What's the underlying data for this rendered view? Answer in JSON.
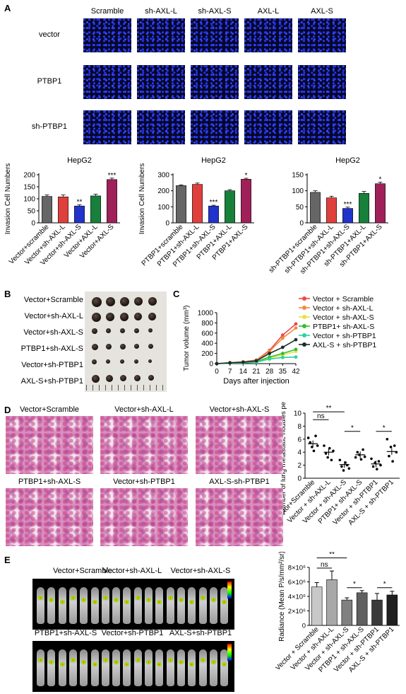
{
  "panels": {
    "a": "A",
    "b": "B",
    "c": "C",
    "d": "D",
    "e": "E"
  },
  "panelA": {
    "columns": [
      "Scramble",
      "sh-AXL-L",
      "sh-AXL-S",
      "AXL-L",
      "AXL-S"
    ],
    "rows": [
      "vector",
      "PTBP1",
      "sh-PTBP1"
    ]
  },
  "chart_data": [
    {
      "type": "bar",
      "title": "HepG2",
      "ylabel": "Invasion Cell Numbers",
      "ylim": [
        0,
        200
      ],
      "yticks": [
        0,
        50,
        100,
        150,
        200
      ],
      "categories": [
        "Vector+scramble",
        "Vector+sh-AXL-L",
        "Vector+sh-AXL-S",
        "Vector+AXL-L",
        "Vector+AXL-S"
      ],
      "values": [
        110,
        108,
        70,
        112,
        180
      ],
      "errors": [
        6,
        8,
        5,
        7,
        6
      ],
      "colors": [
        "#666666",
        "#e0403c",
        "#2233cc",
        "#17803a",
        "#a0205a"
      ],
      "sig": [
        "",
        "",
        "**",
        "",
        "***"
      ]
    },
    {
      "type": "bar",
      "title": "HepG2",
      "ylabel": "Invasion Cell Numbers",
      "ylim": [
        0,
        300
      ],
      "yticks": [
        0,
        100,
        200,
        300
      ],
      "categories": [
        "PTBP1+scramble",
        "PTBP1+sh-AXL-L",
        "PTBP1+sh-AXL-S",
        "PTBP1+AXL-L",
        "PTBP1+AXL-S"
      ],
      "values": [
        232,
        240,
        105,
        200,
        272
      ],
      "errors": [
        5,
        8,
        5,
        7,
        6
      ],
      "colors": [
        "#666666",
        "#e0403c",
        "#2233cc",
        "#17803a",
        "#a0205a"
      ],
      "sig": [
        "",
        "",
        "***",
        "",
        "*"
      ]
    },
    {
      "type": "bar",
      "title": "HepG2",
      "ylabel": "",
      "ylim": [
        0,
        150
      ],
      "yticks": [
        0,
        50,
        100,
        150
      ],
      "categories": [
        "sh-PTBP1+scramble",
        "sh-PTBP1+sh-AXL-L",
        "sh-PTBP1+sh-AXL-S",
        "sh-PTBP1+AXL-L",
        "sh-PTBP1+AXL-S"
      ],
      "values": [
        95,
        78,
        45,
        92,
        122
      ],
      "errors": [
        5,
        5,
        4,
        6,
        5
      ],
      "colors": [
        "#666666",
        "#e0403c",
        "#2233cc",
        "#17803a",
        "#a0205a"
      ],
      "sig": [
        "",
        "",
        "***",
        "",
        "*"
      ]
    },
    {
      "type": "line",
      "ylabel": "Tumor volume (mm³)",
      "xlabel": "Days after injection",
      "ylim": [
        0,
        1000
      ],
      "yticks": [
        0,
        200,
        400,
        600,
        800,
        1000
      ],
      "x": [
        0,
        7,
        14,
        21,
        28,
        35,
        42
      ],
      "series": [
        {
          "name": "Vector + Scramble",
          "color": "#f0464a",
          "marker": "circle",
          "values": [
            0,
            20,
            35,
            70,
            260,
            560,
            780
          ]
        },
        {
          "name": "Vector + sh-AXL-L",
          "color": "#f08a3c",
          "marker": "square",
          "values": [
            0,
            18,
            32,
            65,
            240,
            500,
            700
          ]
        },
        {
          "name": "Vector + sh-AXL-S",
          "color": "#e8e040",
          "marker": "triangle-up",
          "values": [
            0,
            10,
            18,
            35,
            110,
            170,
            240
          ]
        },
        {
          "name": "PTBP1+ sh-AXL-S",
          "color": "#2fbf2f",
          "marker": "triangle-down",
          "values": [
            0,
            12,
            22,
            40,
            130,
            200,
            280
          ]
        },
        {
          "name": "Vector + sh-PTBP1",
          "color": "#2ad1a0",
          "marker": "diamond",
          "values": [
            0,
            8,
            15,
            28,
            90,
            120,
            130
          ]
        },
        {
          "name": "AXL-S + sh-PTBP1",
          "color": "#1a2f2a",
          "marker": "circle-filled",
          "values": [
            0,
            15,
            28,
            55,
            200,
            320,
            470
          ]
        }
      ]
    },
    {
      "type": "scatter",
      "ylabel": "Number of lung metastatic nodules per section",
      "ylim": [
        0,
        10
      ],
      "yticks": [
        0,
        2,
        4,
        6,
        8,
        10
      ],
      "categories": [
        "Vector+Scramble",
        "Vector + sh-AXL-L",
        "Vector + sh-AXL-S",
        "PTBP1+ sh-AXL-S",
        "Vector + sh-PTBP1",
        "AXL-S + sh-PTBP1"
      ],
      "means": [
        5.3,
        4.0,
        2.1,
        3.6,
        2.2,
        4.1
      ],
      "points": [
        [
          6.2,
          5.5,
          4.8,
          4.2,
          6.5,
          5.0
        ],
        [
          5.0,
          3.8,
          3.2,
          4.6,
          2.8,
          4.2
        ],
        [
          2.8,
          1.8,
          1.2,
          2.4,
          2.0,
          1.5
        ],
        [
          3.2,
          4.0,
          3.6,
          2.9,
          4.4,
          3.3
        ],
        [
          3.0,
          1.8,
          2.4,
          1.4,
          2.6,
          2.0
        ],
        [
          6.0,
          3.4,
          4.8,
          2.6,
          5.0,
          4.0
        ]
      ],
      "brackets": [
        {
          "from": 0,
          "to": 1,
          "label": "ns"
        },
        {
          "from": 0,
          "to": 2,
          "label": "**"
        },
        {
          "from": 2,
          "to": 3,
          "label": "*"
        },
        {
          "from": 4,
          "to": 5,
          "label": "*"
        }
      ]
    },
    {
      "type": "bar",
      "ylabel": "Radiance (Mean P/s/mm²/sr)",
      "ylim": [
        0,
        8000000
      ],
      "yticks": [
        "0",
        "2×10⁶",
        "4×10⁶",
        "6×10⁶",
        "8×10⁶"
      ],
      "categories": [
        "Vector + Scramble",
        "Vector + sh-AXL-L",
        "Vector + sh-AXL-S",
        "PTBP1 + sh-AXL-S",
        "Vector + sh-PTBP1",
        "AXL-S + sh-PTBP1"
      ],
      "values": [
        5300000,
        6300000,
        3500000,
        4500000,
        3500000,
        4200000
      ],
      "errors": [
        600000,
        1200000,
        300000,
        300000,
        900000,
        500000
      ],
      "colors": [
        "#c8c8c8",
        "#a8a8a8",
        "#808080",
        "#606060",
        "#3a3a3a",
        "#202020"
      ],
      "brackets": [
        {
          "from": 0,
          "to": 1,
          "label": "ns"
        },
        {
          "from": 0,
          "to": 2,
          "label": "**"
        },
        {
          "from": 0,
          "to": 4,
          "label": "**"
        },
        {
          "from": 2,
          "to": 3,
          "label": "*"
        },
        {
          "from": 4,
          "to": 5,
          "label": "*"
        }
      ]
    }
  ],
  "panelB": {
    "labels": [
      "Vector+Scramble",
      "Vector+sh-AXL-L",
      "Vector+sh-AXL-S",
      "PTBP1+sh-AXL-S",
      "Vector+sh-PTBP1",
      "AXL-S+sh-PTBP1"
    ]
  },
  "panelD": {
    "labels": [
      "Vector+Scramble",
      "Vector+sh-AXL-L",
      "Vector+sh-AXL-S",
      "PTBP1+sh-AXL-S",
      "Vector+sh-PTBP1",
      "AXL-S-sh-PTBP1"
    ]
  },
  "panelE": {
    "labels": [
      "Vector+Scramble",
      "Vector+sh-AXL-L",
      "Vector+sh-AXL-S",
      "PTBP1+sh-AXL-S",
      "Vector+sh-PTBP1",
      "AXL-S+sh-PTBP1"
    ]
  }
}
